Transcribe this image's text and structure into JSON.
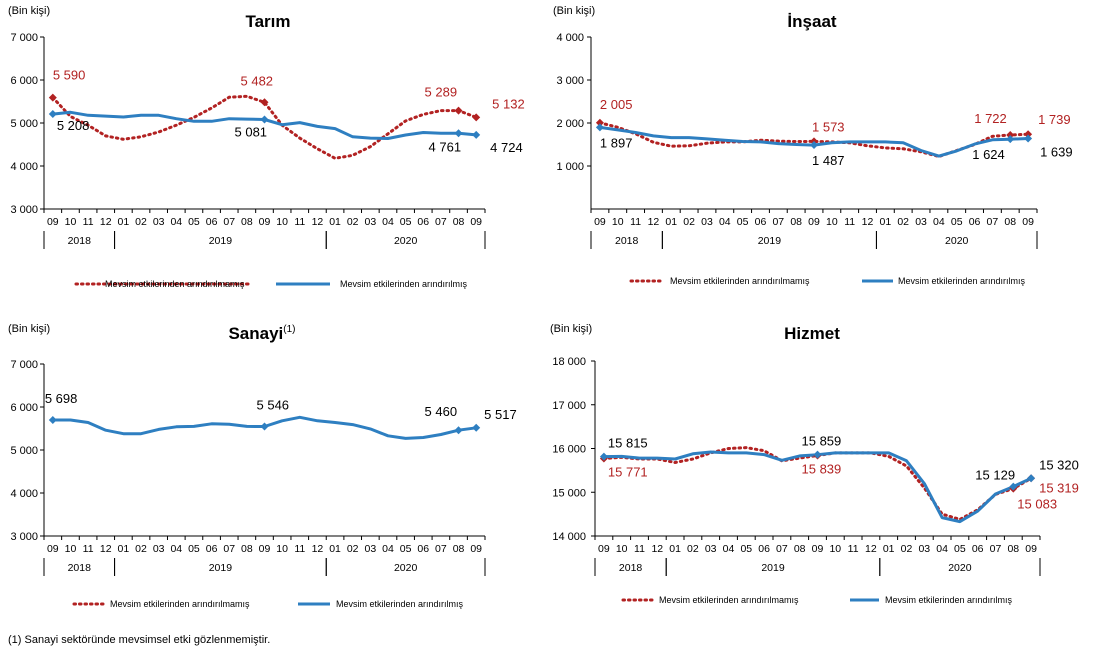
{
  "footnote": "(1) Sanayi sektöründe mevsimsel etki gözlenmemiştir.",
  "legend": {
    "unadjusted": "Mevsim etkilerinden arındırılmamış",
    "adjusted": "Mevsim etkilerinden arındırılmış"
  },
  "colors": {
    "unadjusted": "#b22222",
    "adjusted": "#2e7fc1",
    "axis": "#000000"
  },
  "months": [
    "09",
    "10",
    "11",
    "12",
    "01",
    "02",
    "03",
    "04",
    "05",
    "06",
    "07",
    "08",
    "09",
    "10",
    "11",
    "12",
    "01",
    "02",
    "03",
    "04",
    "05",
    "06",
    "07",
    "08",
    "09"
  ],
  "years": [
    {
      "label": "2018",
      "from": 0,
      "to": 3
    },
    {
      "label": "2019",
      "from": 4,
      "to": 15
    },
    {
      "label": "2020",
      "from": 16,
      "to": 24
    }
  ],
  "chart_data": [
    {
      "id": "tarim",
      "type": "line",
      "title": "Tarım",
      "title_sup": "",
      "unit": "(Bin kişi)",
      "ylim": [
        3000,
        7000
      ],
      "yticks": [
        {
          "v": 3000,
          "label": "3 000"
        },
        {
          "v": 4000,
          "label": "4 000"
        },
        {
          "v": 5000,
          "label": "5 000"
        },
        {
          "v": 6000,
          "label": "6 000"
        },
        {
          "v": 7000,
          "label": "7 000"
        }
      ],
      "series": [
        {
          "name": "Mevsim etkilerinden arındırılmamış",
          "style": "dotted",
          "values": [
            5590,
            5150,
            4950,
            4700,
            4620,
            4680,
            4790,
            4950,
            5130,
            5350,
            5600,
            5620,
            5482,
            4950,
            4650,
            4400,
            4180,
            4250,
            4450,
            4750,
            5050,
            5200,
            5289,
            5289,
            5132
          ]
        },
        {
          "name": "Mevsim etkilerinden arındırılmış",
          "style": "solid",
          "values": [
            5208,
            5250,
            5180,
            5160,
            5140,
            5180,
            5180,
            5100,
            5040,
            5040,
            5100,
            5090,
            5081,
            4960,
            5010,
            4920,
            4870,
            4680,
            4650,
            4640,
            4720,
            4780,
            4760,
            4761,
            4724
          ]
        }
      ],
      "markers": [
        {
          "series": 0,
          "idx": 0,
          "label": "5 590"
        },
        {
          "series": 0,
          "idx": 12,
          "label": "5 482"
        },
        {
          "series": 0,
          "idx": 23,
          "label": "5 289"
        },
        {
          "series": 0,
          "idx": 24,
          "label": "5 132"
        },
        {
          "series": 1,
          "idx": 0,
          "label": "5 208"
        },
        {
          "series": 1,
          "idx": 12,
          "label": "5 081"
        },
        {
          "series": 1,
          "idx": 23,
          "label": "4 761"
        },
        {
          "series": 1,
          "idx": 24,
          "label": "4 724"
        }
      ]
    },
    {
      "id": "insaat",
      "type": "line",
      "title": "İnşaat",
      "title_sup": "",
      "unit": "(Bin kişi)",
      "ylim": [
        0,
        4000
      ],
      "yticks": [
        {
          "v": 1000,
          "label": "1 000"
        },
        {
          "v": 2000,
          "label": "2 000"
        },
        {
          "v": 3000,
          "label": "3 000"
        },
        {
          "v": 4000,
          "label": "4 000"
        }
      ],
      "series": [
        {
          "name": "Mevsim etkilerinden arındırılmamış",
          "style": "dotted",
          "values": [
            2005,
            1900,
            1750,
            1550,
            1460,
            1470,
            1530,
            1560,
            1560,
            1600,
            1580,
            1570,
            1573,
            1560,
            1540,
            1470,
            1420,
            1400,
            1330,
            1220,
            1360,
            1500,
            1690,
            1722,
            1739
          ]
        },
        {
          "name": "Mevsim etkilerinden arındırılmış",
          "style": "solid",
          "values": [
            1897,
            1840,
            1780,
            1700,
            1660,
            1660,
            1630,
            1600,
            1570,
            1560,
            1520,
            1500,
            1487,
            1540,
            1560,
            1560,
            1560,
            1540,
            1360,
            1230,
            1350,
            1510,
            1610,
            1624,
            1639
          ]
        }
      ],
      "markers": [
        {
          "series": 0,
          "idx": 0,
          "label": "2 005"
        },
        {
          "series": 0,
          "idx": 12,
          "label": "1 573"
        },
        {
          "series": 0,
          "idx": 23,
          "label": "1 722"
        },
        {
          "series": 0,
          "idx": 24,
          "label": "1 739"
        },
        {
          "series": 1,
          "idx": 0,
          "label": "1 897"
        },
        {
          "series": 1,
          "idx": 12,
          "label": "1 487"
        },
        {
          "series": 1,
          "idx": 23,
          "label": "1 624"
        },
        {
          "series": 1,
          "idx": 24,
          "label": "1 639"
        }
      ]
    },
    {
      "id": "sanayi",
      "type": "line",
      "title": "Sanayi",
      "title_sup": "(1)",
      "unit": "(Bin kişi)",
      "ylim": [
        3000,
        7000
      ],
      "yticks": [
        {
          "v": 3000,
          "label": "3 000"
        },
        {
          "v": 4000,
          "label": "4 000"
        },
        {
          "v": 5000,
          "label": "5 000"
        },
        {
          "v": 6000,
          "label": "6 000"
        },
        {
          "v": 7000,
          "label": "7 000"
        }
      ],
      "series": [
        {
          "name": "Mevsim etkilerinden arındırılmış",
          "style": "solid",
          "values": [
            5698,
            5698,
            5640,
            5460,
            5380,
            5380,
            5480,
            5540,
            5550,
            5610,
            5600,
            5550,
            5546,
            5680,
            5760,
            5680,
            5640,
            5590,
            5490,
            5330,
            5270,
            5290,
            5360,
            5460,
            5517
          ]
        }
      ],
      "markers": [
        {
          "series": 0,
          "idx": 0,
          "label": "5 698"
        },
        {
          "series": 0,
          "idx": 12,
          "label": "5 546"
        },
        {
          "series": 0,
          "idx": 23,
          "label": "5 460"
        },
        {
          "series": 0,
          "idx": 24,
          "label": "5 517"
        }
      ]
    },
    {
      "id": "hizmet",
      "type": "line",
      "title": "Hizmet",
      "title_sup": "",
      "unit": "(Bin kişi)",
      "ylim": [
        14000,
        18000
      ],
      "yticks": [
        {
          "v": 14000,
          "label": "14 000"
        },
        {
          "v": 15000,
          "label": "15 000"
        },
        {
          "v": 16000,
          "label": "16 000"
        },
        {
          "v": 17000,
          "label": "17 000"
        },
        {
          "v": 18000,
          "label": "18 000"
        }
      ],
      "series": [
        {
          "name": "Mevsim etkilerinden arındırılmamış",
          "style": "dotted",
          "values": [
            15771,
            15800,
            15760,
            15760,
            15680,
            15760,
            15900,
            16000,
            16020,
            15950,
            15720,
            15780,
            15839,
            15900,
            15900,
            15900,
            15820,
            15600,
            15100,
            14500,
            14380,
            14600,
            14950,
            15083,
            15319
          ]
        },
        {
          "name": "Mevsim etkilerinden arındırılmış",
          "style": "solid",
          "values": [
            15815,
            15820,
            15780,
            15780,
            15760,
            15880,
            15920,
            15900,
            15900,
            15860,
            15730,
            15830,
            15859,
            15900,
            15900,
            15900,
            15900,
            15720,
            15200,
            14420,
            14330,
            14570,
            14960,
            15129,
            15320
          ]
        }
      ],
      "markers": [
        {
          "series": 0,
          "idx": 0,
          "label": "15 771"
        },
        {
          "series": 0,
          "idx": 12,
          "label": "15 839"
        },
        {
          "series": 0,
          "idx": 23,
          "label": "15 083"
        },
        {
          "series": 0,
          "idx": 24,
          "label": "15 319"
        },
        {
          "series": 1,
          "idx": 0,
          "label": "15 815"
        },
        {
          "series": 1,
          "idx": 12,
          "label": "15 859"
        },
        {
          "series": 1,
          "idx": 23,
          "label": "15 129"
        },
        {
          "series": 1,
          "idx": 24,
          "label": "15 320"
        }
      ]
    }
  ]
}
